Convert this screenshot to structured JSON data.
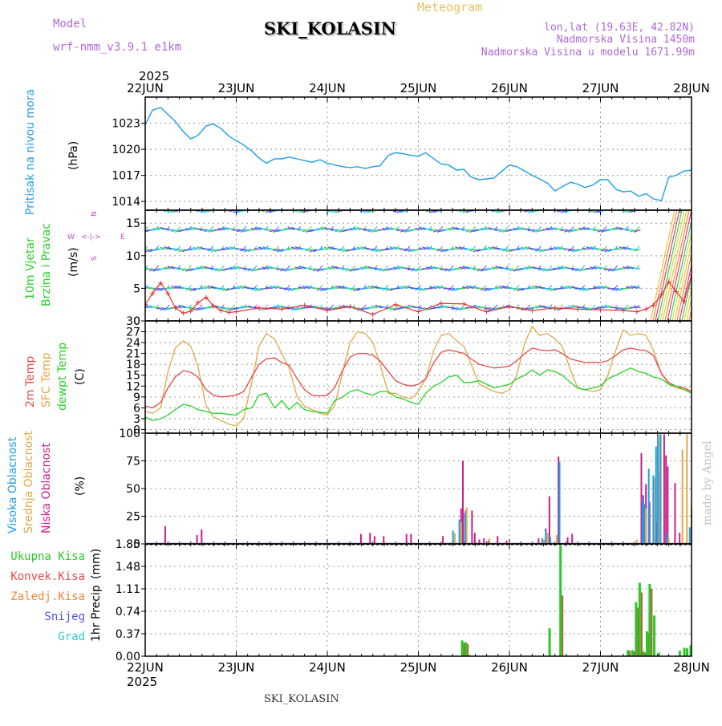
{
  "header": {
    "model_label": "Model",
    "model_value": "wrf-nmm_v3.9.1  e1km",
    "meteogram_label": "Meteogram",
    "station_title": "SKI_KOLASIN",
    "lonlat": "lon,lat (19.63E, 42.82N)",
    "altitude": "Nadmorska Visina 1450m",
    "model_altitude": "Nadmorska Visina u modelu 1671.99m",
    "year_top": "2025",
    "year_bottom": "2025",
    "footer_station": "SKI_KOLASIN",
    "credit": "made by Angel"
  },
  "time_axis": {
    "labels": [
      "22JUN",
      "23JUN",
      "24JUN",
      "25JUN",
      "26JUN",
      "27JUN",
      "28JUN"
    ]
  },
  "colors": {
    "pressure": "#1e9ee8",
    "temp2m": "#e84848",
    "sfc_temp": "#e0a848",
    "dewpoint": "#28d028",
    "visoka": "#1e9ee8",
    "srednja": "#e0a848",
    "niska": "#c81e8c",
    "ukupna": "#28c828",
    "konvek": "#e84848",
    "zaledj": "#f08838",
    "snijeg": "#5050e0",
    "grad": "#30c8c8",
    "wind_title": "#28d028",
    "wind_speed": "#e83030",
    "wind_legend": "#c848c8"
  },
  "chart_data": [
    {
      "type": "line",
      "id": "pressure",
      "ylabel_lines": [
        "Pritisak na nivou mora"
      ],
      "unit": "(hPa)",
      "ylim": [
        1013,
        1026
      ],
      "yticks": [
        1014,
        1017,
        1020,
        1023
      ],
      "grid": true,
      "x_days": [
        0,
        0.08,
        0.17,
        0.25,
        0.33,
        0.42,
        0.5,
        0.58,
        0.67,
        0.75,
        0.83,
        0.92,
        1.0,
        1.08,
        1.17,
        1.25,
        1.33,
        1.42,
        1.5,
        1.58,
        1.67,
        1.75,
        1.83,
        1.92,
        2.0,
        2.08,
        2.17,
        2.25,
        2.33,
        2.42,
        2.5,
        2.58,
        2.67,
        2.75,
        2.83,
        2.92,
        3.0,
        3.08,
        3.17,
        3.25,
        3.33,
        3.42,
        3.5,
        3.58,
        3.67,
        3.75,
        3.83,
        3.92,
        4.0,
        4.08,
        4.17,
        4.25,
        4.33,
        4.42,
        4.5,
        4.58,
        4.67,
        4.75,
        4.83,
        4.92,
        5.0,
        5.08,
        5.17,
        5.25,
        5.33,
        5.42,
        5.5,
        5.58,
        5.67,
        5.75,
        5.83,
        5.92,
        6.0
      ],
      "series": [
        {
          "values": [
            1022.8,
            1024.5,
            1024.8,
            1024.0,
            1023.2,
            1022.0,
            1021.2,
            1021.6,
            1022.7,
            1022.9,
            1022.4,
            1021.5,
            1021.0,
            1020.5,
            1019.8,
            1019.0,
            1018.4,
            1018.9,
            1018.9,
            1019.1,
            1018.9,
            1018.7,
            1018.5,
            1018.8,
            1018.4,
            1018.2,
            1018.0,
            1017.9,
            1018.0,
            1017.8,
            1018.0,
            1018.1,
            1019.3,
            1019.6,
            1019.5,
            1019.3,
            1019.2,
            1019.6,
            1018.9,
            1018.3,
            1018.2,
            1017.6,
            1017.7,
            1016.8,
            1016.5,
            1016.6,
            1016.7,
            1017.5,
            1018.2,
            1018.0,
            1017.5,
            1017.0,
            1016.6,
            1016.1,
            1015.2,
            1015.7,
            1016.2,
            1016.0,
            1015.6,
            1015.9,
            1016.5,
            1016.5,
            1015.4,
            1015.1,
            1015.2,
            1014.6,
            1014.9,
            1014.3,
            1014.1,
            1016.8,
            1017.0,
            1017.5,
            1017.6
          ]
        }
      ]
    },
    {
      "type": "line",
      "id": "wind",
      "ylabel_lines": [
        "10m Vjetar",
        "Brzina i Pravac"
      ],
      "unit": "(m/s)",
      "ylim": [
        0,
        17
      ],
      "yticks": [
        0,
        5,
        10,
        15
      ],
      "grid": true,
      "direction_legend": {
        "n": "N",
        "s": "S",
        "w": "W",
        "e": "E"
      },
      "x_days": [
        0,
        0.08,
        0.17,
        0.25,
        0.33,
        0.42,
        0.5,
        0.58,
        0.67,
        0.75,
        0.83,
        0.92,
        1.0,
        1.25,
        1.5,
        1.75,
        2.0,
        2.25,
        2.5,
        2.75,
        3.0,
        3.25,
        3.5,
        3.75,
        4.0,
        4.25,
        4.5,
        4.75,
        5.0,
        5.25,
        5.4,
        5.5,
        5.58,
        5.67,
        5.75,
        5.83,
        5.92,
        6.0
      ],
      "series": [
        {
          "name": "speed",
          "values": [
            2.5,
            4.2,
            5.8,
            4.2,
            2.0,
            1.2,
            1.5,
            2.8,
            3.6,
            2.3,
            1.6,
            1.3,
            1.4,
            2.0,
            1.8,
            2.4,
            1.6,
            2.2,
            1.0,
            2.5,
            1.4,
            2.7,
            2.6,
            1.4,
            2.2,
            1.6,
            2.0,
            1.8,
            1.7,
            1.6,
            1.4,
            1.8,
            2.4,
            4.0,
            6.0,
            4.5,
            3.0,
            7.0
          ]
        }
      ]
    },
    {
      "type": "line",
      "id": "temperature",
      "ylabel_lines": [
        "2m Temp",
        "SFC Temp",
        "dewpt Temp"
      ],
      "unit": "(C)",
      "ylim": [
        -1,
        30
      ],
      "yticks": [
        0,
        3,
        6,
        9,
        12,
        15,
        18,
        21,
        24,
        27,
        30
      ],
      "grid": true,
      "x_days": [
        0,
        0.08,
        0.17,
        0.25,
        0.33,
        0.42,
        0.5,
        0.58,
        0.67,
        0.75,
        0.83,
        0.92,
        1.0,
        1.08,
        1.17,
        1.25,
        1.33,
        1.42,
        1.5,
        1.58,
        1.67,
        1.75,
        1.83,
        1.92,
        2.0,
        2.08,
        2.17,
        2.25,
        2.33,
        2.42,
        2.5,
        2.58,
        2.67,
        2.75,
        2.83,
        2.92,
        3.0,
        3.08,
        3.17,
        3.25,
        3.33,
        3.42,
        3.5,
        3.58,
        3.67,
        3.75,
        3.83,
        3.92,
        4.0,
        4.08,
        4.17,
        4.25,
        4.33,
        4.42,
        4.5,
        4.58,
        4.67,
        4.75,
        4.83,
        4.92,
        5.0,
        5.08,
        5.17,
        5.25,
        5.33,
        5.42,
        5.5,
        5.58,
        5.67,
        5.75,
        5.83,
        5.92,
        6.0
      ],
      "series": [
        {
          "name": "2m Temp",
          "values": [
            6.5,
            6.0,
            7.5,
            11.5,
            14.5,
            16.3,
            15.8,
            14.5,
            11.0,
            9.5,
            9.0,
            9.2,
            9.5,
            10.5,
            14.5,
            18.0,
            19.5,
            19.8,
            18.5,
            17.8,
            14.0,
            11.0,
            9.5,
            9.3,
            9.5,
            11.5,
            16.5,
            20.0,
            21.0,
            21.0,
            20.5,
            19.0,
            16.0,
            13.5,
            12.5,
            12.0,
            12.5,
            14.0,
            18.5,
            21.3,
            22.0,
            21.5,
            21.0,
            19.5,
            18.0,
            17.5,
            17.0,
            17.2,
            17.5,
            19.0,
            21.0,
            22.5,
            22.0,
            21.8,
            22.0,
            21.0,
            19.5,
            19.0,
            18.5,
            18.6,
            18.5,
            19.0,
            20.5,
            22.0,
            22.5,
            22.0,
            21.8,
            20.5,
            15.5,
            13.0,
            12.0,
            11.5,
            10.5
          ]
        },
        {
          "name": "SFC Temp",
          "values": [
            5.0,
            4.5,
            6.0,
            16.0,
            22.5,
            24.5,
            23.0,
            17.5,
            6.5,
            3.5,
            2.5,
            1.5,
            1.0,
            3.0,
            13.0,
            23.0,
            26.5,
            25.0,
            21.0,
            17.0,
            9.0,
            6.5,
            5.5,
            4.5,
            4.0,
            6.5,
            16.0,
            24.0,
            27.0,
            26.5,
            24.0,
            18.0,
            10.0,
            10.0,
            9.0,
            8.5,
            10.5,
            14.0,
            22.0,
            26.0,
            26.5,
            24.5,
            23.0,
            18.0,
            12.5,
            11.5,
            10.5,
            10.0,
            11.0,
            15.0,
            24.0,
            28.5,
            26.0,
            26.5,
            25.0,
            23.0,
            16.5,
            11.5,
            11.0,
            10.5,
            11.0,
            15.0,
            22.0,
            27.5,
            26.0,
            26.5,
            26.0,
            22.0,
            15.5,
            12.5,
            11.5,
            11.0,
            10.5
          ]
        },
        {
          "name": "dewpt Temp",
          "values": [
            3.5,
            2.5,
            3.0,
            4.0,
            5.5,
            7.0,
            6.5,
            5.5,
            5.0,
            4.5,
            4.5,
            4.2,
            4.0,
            5.5,
            6.0,
            9.5,
            10.0,
            6.0,
            8.0,
            5.5,
            7.5,
            5.5,
            5.0,
            4.8,
            4.5,
            8.0,
            9.0,
            10.5,
            11.0,
            10.0,
            9.5,
            10.5,
            10.5,
            9.0,
            8.5,
            7.5,
            7.0,
            10.0,
            12.0,
            13.0,
            14.5,
            15.0,
            13.0,
            13.0,
            13.5,
            12.5,
            11.5,
            12.0,
            12.5,
            14.0,
            15.0,
            16.5,
            15.0,
            16.5,
            16.0,
            15.0,
            13.0,
            11.5,
            11.0,
            11.5,
            12.0,
            14.0,
            15.0,
            16.0,
            17.0,
            16.0,
            15.5,
            14.5,
            14.0,
            12.5,
            12.0,
            11.0,
            10.0
          ]
        }
      ]
    },
    {
      "type": "bar",
      "id": "cloud",
      "ylabel_lines": [
        "Visoka Oblacnost",
        "Srednja Oblacnost",
        "Niska Oblacnost"
      ],
      "unit": "(%)",
      "ylim": [
        0,
        100
      ],
      "yticks": [
        0,
        25,
        50,
        75,
        100
      ],
      "grid": true,
      "x_days": [
        0.2,
        0.55,
        0.6,
        2.35,
        2.45,
        2.5,
        2.6,
        2.85,
        2.9,
        3.25,
        3.4,
        3.45,
        3.47,
        3.5,
        3.53,
        3.57,
        3.6,
        3.65,
        3.7,
        3.75,
        3.78,
        3.85,
        3.95,
        4.3,
        4.38,
        4.42,
        4.47,
        4.52,
        4.57,
        4.62,
        4.67,
        5.4,
        5.43,
        5.45,
        5.48,
        5.5,
        5.52,
        5.55,
        5.6,
        5.63,
        5.65,
        5.68,
        5.7,
        5.72,
        5.75,
        5.8,
        5.85,
        5.9,
        5.95,
        6.0
      ],
      "series": [
        {
          "name": "Visoka Oblacnost",
          "values": [
            0,
            0,
            0,
            0,
            0,
            0,
            0,
            0,
            0,
            0,
            12,
            0,
            22,
            0,
            28,
            0,
            0,
            0,
            0,
            0,
            0,
            0,
            0,
            0,
            5,
            12,
            6,
            0,
            74,
            0,
            0,
            0,
            0,
            0,
            42,
            36,
            0,
            68,
            62,
            88,
            98,
            99,
            0,
            0,
            10,
            0,
            0,
            0,
            0,
            15
          ]
        },
        {
          "name": "Srednja Oblacnost",
          "values": [
            0,
            0,
            0,
            0,
            0,
            0,
            0,
            0,
            0,
            0,
            10,
            0,
            20,
            0,
            33,
            0,
            0,
            0,
            0,
            0,
            5,
            0,
            0,
            0,
            4,
            10,
            0,
            8,
            0,
            0,
            0,
            4,
            0,
            0,
            30,
            32,
            0,
            0,
            60,
            90,
            99,
            0,
            0,
            0,
            5,
            0,
            0,
            85,
            99,
            33
          ]
        },
        {
          "name": "Niska Oblacnost",
          "values": [
            16,
            8,
            13,
            9,
            10,
            7,
            7,
            9,
            9,
            7,
            0,
            32,
            75,
            30,
            0,
            30,
            10,
            4,
            5,
            3,
            0,
            7,
            3,
            5,
            14,
            43,
            0,
            79,
            0,
            6,
            9,
            0,
            82,
            44,
            54,
            0,
            38,
            0,
            20,
            65,
            0,
            99,
            80,
            70,
            0,
            55,
            10,
            0,
            0,
            0
          ]
        }
      ]
    },
    {
      "type": "bar",
      "id": "precip",
      "ylabel_lines": [
        "1hr Precip"
      ],
      "unit": "(mm)",
      "legend_labels": [
        "Ukupna Kisa",
        "Konvek.Kisa",
        "Zaledj.Kisa",
        "Snijeg",
        "Grad"
      ],
      "ylim": [
        0,
        1.85
      ],
      "yticks": [
        0,
        0.37,
        0.74,
        1.11,
        1.48,
        1.85
      ],
      "grid": true,
      "x_days": [
        3.49,
        3.53,
        3.55,
        4.45,
        4.57,
        5.31,
        5.36,
        5.4,
        5.44,
        5.48,
        5.52,
        5.55,
        5.6,
        5.65,
        5.88,
        5.93,
        5.96,
        6.0
      ],
      "series": [
        {
          "name": "Ukupna Kisa",
          "values": [
            0.26,
            0.23,
            0.03,
            0.46,
            1.82,
            0.1,
            0.1,
            0.89,
            1.21,
            0.08,
            0.41,
            1.19,
            0.67,
            0.06,
            0.09,
            0.14,
            0.13,
            0.18
          ]
        },
        {
          "name": "Konvek.Kisa",
          "values": [
            0.22,
            0.2,
            0.02,
            0,
            1.0,
            0.09,
            0.08,
            0.8,
            1.05,
            0.06,
            0.38,
            1.11,
            0,
            0,
            0,
            0,
            0,
            0
          ]
        }
      ]
    }
  ]
}
